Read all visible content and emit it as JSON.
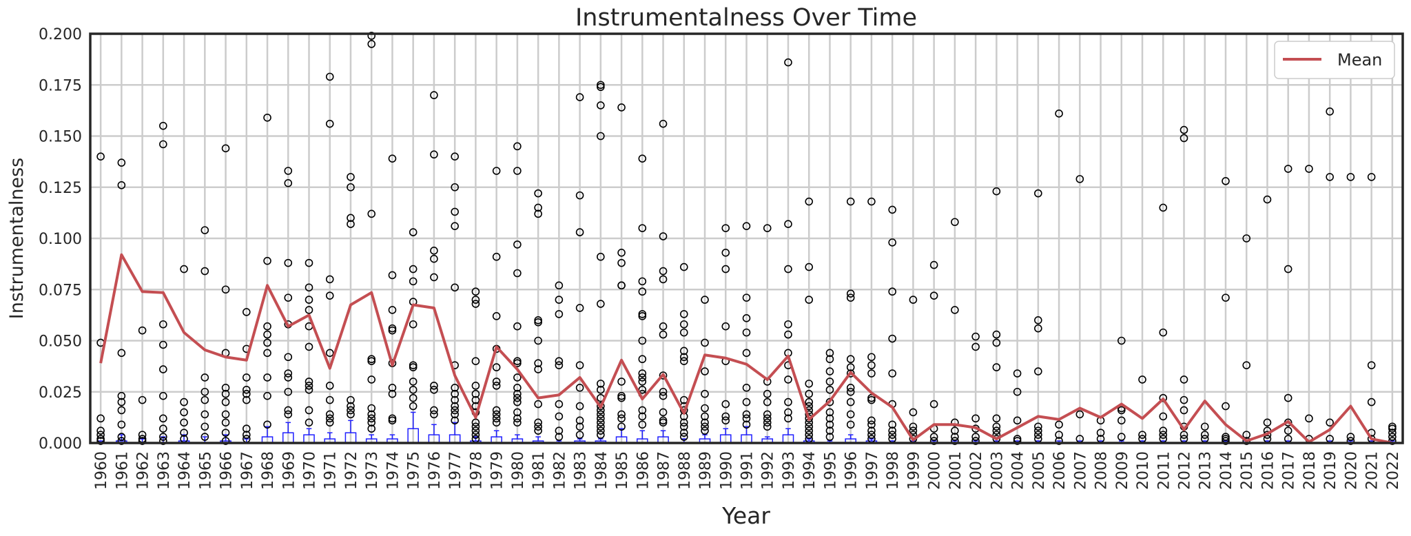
{
  "chart_data": {
    "type": "box",
    "title": "Instrumentalness Over Time",
    "xlabel": "Year",
    "ylabel": "Instrumentalness",
    "ylim": [
      0,
      0.2
    ],
    "yticks": [
      "0.000",
      "0.025",
      "0.050",
      "0.075",
      "0.100",
      "0.125",
      "0.150",
      "0.175",
      "0.200"
    ],
    "grid": true,
    "legend": {
      "position": "top-right",
      "entries": [
        "Mean"
      ]
    },
    "colors": {
      "mean_line": "#c44e52",
      "box": "#1f1fff",
      "outlier": "#000000",
      "grid": "#cccccc"
    },
    "categories": [
      "1960",
      "1961",
      "1962",
      "1963",
      "1964",
      "1965",
      "1966",
      "1967",
      "1968",
      "1969",
      "1970",
      "1971",
      "1972",
      "1973",
      "1974",
      "1975",
      "1976",
      "1977",
      "1978",
      "1979",
      "1980",
      "1981",
      "1982",
      "1983",
      "1984",
      "1985",
      "1986",
      "1987",
      "1988",
      "1989",
      "1990",
      "1991",
      "1992",
      "1993",
      "1994",
      "1995",
      "1996",
      "1997",
      "1998",
      "1999",
      "2000",
      "2001",
      "2002",
      "2003",
      "2004",
      "2005",
      "2006",
      "2007",
      "2008",
      "2009",
      "2010",
      "2011",
      "2012",
      "2013",
      "2014",
      "2015",
      "2016",
      "2017",
      "2018",
      "2019",
      "2020",
      "2021",
      "2022"
    ],
    "series": [
      {
        "name": "Mean",
        "type": "line",
        "values": [
          0.039,
          0.092,
          0.074,
          0.0735,
          0.054,
          0.0455,
          0.042,
          0.0405,
          0.077,
          0.057,
          0.0625,
          0.0365,
          0.0675,
          0.0735,
          0.038,
          0.0675,
          0.066,
          0.033,
          0.0125,
          0.047,
          0.036,
          0.022,
          0.0235,
          0.032,
          0.0175,
          0.0405,
          0.0215,
          0.0335,
          0.0145,
          0.043,
          0.0415,
          0.0385,
          0.031,
          0.0425,
          0.0115,
          0.0205,
          0.0345,
          0.0245,
          0.0175,
          0.0015,
          0.009,
          0.009,
          0.0075,
          0.002,
          0.0075,
          0.013,
          0.0115,
          0.017,
          0.0125,
          0.019,
          0.012,
          0.0215,
          0.0065,
          0.0205,
          0.009,
          0.001,
          0.0045,
          0.0105,
          0.0005,
          0.0065,
          0.018,
          0.002,
          0.0
        ]
      }
    ],
    "boxes": [
      0,
      0.001,
      0,
      0,
      0.001,
      0,
      0.001,
      0,
      0.003,
      0.005,
      0.004,
      0.002,
      0.005,
      0.002,
      0.002,
      0.007,
      0.004,
      0.004,
      0.001,
      0.003,
      0.002,
      0.001,
      0,
      0.001,
      0.001,
      0.003,
      0.002,
      0.003,
      0,
      0.002,
      0.004,
      0.004,
      0.002,
      0.004,
      0.001,
      0,
      0.002,
      0.001,
      0,
      0,
      0,
      0,
      0,
      0,
      0,
      0,
      0,
      0,
      0,
      0,
      0,
      0,
      0,
      0,
      0,
      0,
      0,
      0,
      0,
      0,
      0,
      0,
      0
    ],
    "whiskers": [
      0.001,
      0.004,
      0.002,
      0.003,
      0.004,
      0.003,
      0.004,
      0.002,
      0.008,
      0.01,
      0.007,
      0.005,
      0.011,
      0.004,
      0.004,
      0.015,
      0.009,
      0.01,
      0.003,
      0.006,
      0.004,
      0.003,
      0.001,
      0.002,
      0.002,
      0.007,
      0.006,
      0.006,
      0.002,
      0.004,
      0.007,
      0.008,
      0.003,
      0.007,
      0.002,
      0.001,
      0.004,
      0.002,
      0.001,
      0.001,
      0.001,
      0.001,
      0.001,
      0.001,
      0.001,
      0.001,
      0.001,
      0.001,
      0.001,
      0.001,
      0.001,
      0.001,
      0.001,
      0.001,
      0.001,
      0.001,
      0.001,
      0.001,
      0.001,
      0.001,
      0.001,
      0.001,
      0.001
    ],
    "outliers": [
      [
        0.14,
        0.049,
        0.012,
        0.006,
        0.004,
        0.002,
        0.001
      ],
      [
        0.137,
        0.126,
        0.044,
        0.023,
        0.02,
        0.016,
        0.009,
        0.003,
        0.001
      ],
      [
        0.055,
        0.021,
        0.004,
        0.002,
        0.001
      ],
      [
        0.155,
        0.146,
        0.058,
        0.048,
        0.036,
        0.023,
        0.012,
        0.007,
        0.003,
        0.001
      ],
      [
        0.085,
        0.02,
        0.015,
        0.01,
        0.005,
        0.002
      ],
      [
        0.104,
        0.084,
        0.032,
        0.025,
        0.021,
        0.014,
        0.008,
        0.003
      ],
      [
        0.144,
        0.075,
        0.044,
        0.027,
        0.024,
        0.02,
        0.014,
        0.01,
        0.005,
        0.001
      ],
      [
        0.064,
        0.046,
        0.032,
        0.026,
        0.024,
        0.021,
        0.007,
        0.004,
        0.002
      ],
      [
        0.159,
        0.089,
        0.057,
        0.053,
        0.049,
        0.044,
        0.032,
        0.023,
        0.009
      ],
      [
        0.133,
        0.127,
        0.088,
        0.071,
        0.058,
        0.042,
        0.034,
        0.032,
        0.025,
        0.016,
        0.014
      ],
      [
        0.088,
        0.076,
        0.07,
        0.065,
        0.057,
        0.047,
        0.03,
        0.028,
        0.026,
        0.016,
        0.01
      ],
      [
        0.179,
        0.156,
        0.08,
        0.072,
        0.044,
        0.028,
        0.021,
        0.014,
        0.012,
        0.01
      ],
      [
        0.13,
        0.125,
        0.11,
        0.107,
        0.021,
        0.018,
        0.016,
        0.014
      ],
      [
        0.199,
        0.195,
        0.112,
        0.041,
        0.04,
        0.031,
        0.017,
        0.014,
        0.012,
        0.01,
        0.007
      ],
      [
        0.139,
        0.082,
        0.065,
        0.056,
        0.055,
        0.039,
        0.027,
        0.024,
        0.012,
        0.011
      ],
      [
        0.103,
        0.085,
        0.079,
        0.069,
        0.058,
        0.038,
        0.037,
        0.03,
        0.026,
        0.022,
        0.018
      ],
      [
        0.17,
        0.141,
        0.094,
        0.09,
        0.081,
        0.028,
        0.026,
        0.016,
        0.014
      ],
      [
        0.14,
        0.125,
        0.113,
        0.106,
        0.076,
        0.038,
        0.027,
        0.024,
        0.021,
        0.018,
        0.016,
        0.014,
        0.011
      ],
      [
        0.074,
        0.07,
        0.068,
        0.04,
        0.028,
        0.024,
        0.021,
        0.018,
        0.015,
        0.01,
        0.008,
        0.006,
        0.004,
        0.002
      ],
      [
        0.133,
        0.091,
        0.062,
        0.046,
        0.037,
        0.03,
        0.028,
        0.016,
        0.014,
        0.012,
        0.01
      ],
      [
        0.145,
        0.133,
        0.097,
        0.083,
        0.057,
        0.04,
        0.039,
        0.032,
        0.027,
        0.024,
        0.022,
        0.02,
        0.015,
        0.012,
        0.01
      ],
      [
        0.122,
        0.115,
        0.112,
        0.06,
        0.059,
        0.05,
        0.039,
        0.036,
        0.019,
        0.01,
        0.008,
        0.006
      ],
      [
        0.077,
        0.07,
        0.063,
        0.04,
        0.038,
        0.019,
        0.013,
        0.006,
        0.003
      ],
      [
        0.169,
        0.121,
        0.103,
        0.066,
        0.038,
        0.027,
        0.018,
        0.011,
        0.008,
        0.004
      ],
      [
        0.175,
        0.174,
        0.165,
        0.15,
        0.091,
        0.068,
        0.029,
        0.026,
        0.022,
        0.018,
        0.016,
        0.014,
        0.012,
        0.01,
        0.008,
        0.006,
        0.004
      ],
      [
        0.164,
        0.093,
        0.088,
        0.077,
        0.077,
        0.03,
        0.023,
        0.022,
        0.014,
        0.012,
        0.008
      ],
      [
        0.139,
        0.105,
        0.079,
        0.074,
        0.063,
        0.062,
        0.05,
        0.041,
        0.034,
        0.032,
        0.03,
        0.026,
        0.024,
        0.016,
        0.013,
        0.009
      ],
      [
        0.156,
        0.101,
        0.084,
        0.08,
        0.057,
        0.053,
        0.033,
        0.025,
        0.023,
        0.015,
        0.011,
        0.01
      ],
      [
        0.086,
        0.063,
        0.058,
        0.054,
        0.045,
        0.042,
        0.04,
        0.021,
        0.018,
        0.016,
        0.013,
        0.01,
        0.008,
        0.005,
        0.003
      ],
      [
        0.07,
        0.049,
        0.035,
        0.024,
        0.017,
        0.013,
        0.01,
        0.008,
        0.006
      ],
      [
        0.105,
        0.093,
        0.085,
        0.057,
        0.04,
        0.019,
        0.013,
        0.011
      ],
      [
        0.106,
        0.071,
        0.061,
        0.054,
        0.044,
        0.027,
        0.02,
        0.014,
        0.012,
        0.009
      ],
      [
        0.105,
        0.03,
        0.024,
        0.02,
        0.014,
        0.012,
        0.01,
        0.008
      ],
      [
        0.186,
        0.107,
        0.085,
        0.058,
        0.053,
        0.044,
        0.038,
        0.031,
        0.02,
        0.015,
        0.012
      ],
      [
        0.118,
        0.086,
        0.07,
        0.029,
        0.024,
        0.02,
        0.018,
        0.016,
        0.014,
        0.012,
        0.01,
        0.008,
        0.006,
        0.004,
        0.002
      ],
      [
        0.044,
        0.041,
        0.035,
        0.03,
        0.026,
        0.02,
        0.015,
        0.012,
        0.009,
        0.006,
        0.003
      ],
      [
        0.118,
        0.073,
        0.071,
        0.041,
        0.037,
        0.034,
        0.027,
        0.025,
        0.02,
        0.014,
        0.009
      ],
      [
        0.118,
        0.042,
        0.038,
        0.034,
        0.022,
        0.021,
        0.011,
        0.009,
        0.006,
        0.004,
        0.002
      ],
      [
        0.114,
        0.098,
        0.074,
        0.051,
        0.034,
        0.019,
        0.009,
        0.006,
        0.004,
        0.002
      ],
      [
        0.07,
        0.015,
        0.008,
        0.006,
        0.004,
        0.002
      ],
      [
        0.087,
        0.072,
        0.019,
        0.007,
        0.003,
        0.001
      ],
      [
        0.108,
        0.065,
        0.01,
        0.006,
        0.003,
        0.001
      ],
      [
        0.052,
        0.047,
        0.012,
        0.007,
        0.003,
        0.001
      ],
      [
        0.123,
        0.053,
        0.049,
        0.037,
        0.012,
        0.008,
        0.006,
        0.004,
        0.002
      ],
      [
        0.034,
        0.025,
        0.011,
        0.002,
        0.001
      ],
      [
        0.122,
        0.06,
        0.056,
        0.035,
        0.008,
        0.006,
        0.004,
        0.002
      ],
      [
        0.161,
        0.009,
        0.004,
        0.001
      ],
      [
        0.129,
        0.014,
        0.002
      ],
      [
        0.011,
        0.005,
        0.002
      ],
      [
        0.05,
        0.017,
        0.016,
        0.011,
        0.003
      ],
      [
        0.031,
        0.004,
        0.002
      ],
      [
        0.115,
        0.054,
        0.022,
        0.013,
        0.006,
        0.004,
        0.002
      ],
      [
        0.153,
        0.149,
        0.031,
        0.021,
        0.016,
        0.008,
        0.004,
        0.002
      ],
      [
        0.008,
        0.004,
        0.002
      ],
      [
        0.128,
        0.071,
        0.018,
        0.003,
        0.002,
        0.001
      ],
      [
        0.1,
        0.038,
        0.004,
        0.001
      ],
      [
        0.119,
        0.01,
        0.006,
        0.004,
        0.002
      ],
      [
        0.134,
        0.085,
        0.022,
        0.01,
        0.006,
        0.002
      ],
      [
        0.134,
        0.012,
        0.002
      ],
      [
        0.162,
        0.13,
        0.01,
        0.002
      ],
      [
        0.13,
        0.003,
        0.001
      ],
      [
        0.13,
        0.038,
        0.02,
        0.005,
        0.002
      ],
      [
        0.008,
        0.007,
        0.005,
        0.003,
        0.001
      ]
    ]
  }
}
